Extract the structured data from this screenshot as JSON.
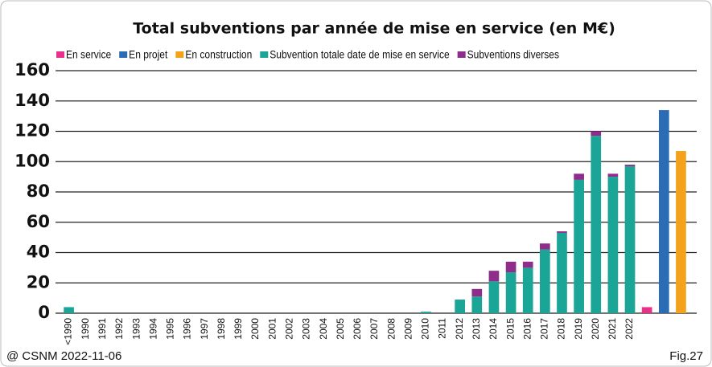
{
  "chart_data": {
    "type": "stacked_bar",
    "title": "Total subventions par année de mise en service (en M€)",
    "categories": [
      "<1990",
      "1990",
      "1991",
      "1992",
      "1993",
      "1994",
      "1995",
      "1996",
      "1997",
      "1998",
      "1999",
      "2000",
      "2001",
      "2002",
      "2003",
      "2004",
      "2005",
      "2006",
      "2007",
      "2008",
      "2009",
      "2010",
      "2011",
      "2012",
      "2013",
      "2014",
      "2015",
      "2016",
      "2017",
      "2018",
      "2019",
      "2020",
      "2021",
      "2022",
      null,
      null,
      null
    ],
    "series": [
      {
        "name": "En service",
        "color": "#e8318a",
        "values": [
          null,
          null,
          null,
          null,
          null,
          null,
          null,
          null,
          null,
          null,
          null,
          null,
          null,
          null,
          null,
          null,
          null,
          null,
          null,
          null,
          null,
          null,
          null,
          null,
          null,
          null,
          null,
          null,
          null,
          null,
          null,
          null,
          null,
          null,
          4,
          null,
          null
        ]
      },
      {
        "name": "En projet",
        "color": "#2a6db5",
        "values": [
          null,
          null,
          null,
          null,
          null,
          null,
          null,
          null,
          null,
          null,
          null,
          null,
          null,
          null,
          null,
          null,
          null,
          null,
          null,
          null,
          null,
          null,
          null,
          null,
          null,
          null,
          null,
          null,
          null,
          null,
          null,
          null,
          null,
          null,
          null,
          134,
          null
        ]
      },
      {
        "name": "En construction",
        "color": "#f5a21b",
        "values": [
          null,
          null,
          null,
          null,
          null,
          null,
          null,
          null,
          null,
          null,
          null,
          null,
          null,
          null,
          null,
          null,
          null,
          null,
          null,
          null,
          null,
          null,
          null,
          null,
          null,
          null,
          null,
          null,
          null,
          null,
          null,
          null,
          null,
          null,
          null,
          null,
          107
        ]
      },
      {
        "name": "Subvention totale date de mise en service",
        "color": "#1aa597",
        "values": [
          4,
          0,
          0,
          0,
          0,
          0,
          0,
          0,
          0,
          0,
          0,
          0,
          0,
          0,
          0,
          0,
          0,
          0,
          0,
          0,
          0,
          1,
          0,
          9,
          11,
          21,
          27,
          30,
          42,
          53,
          88,
          117,
          90,
          97,
          null,
          null,
          null
        ]
      },
      {
        "name": "Subventions diverses",
        "color": "#8e2d8a",
        "values": [
          null,
          null,
          null,
          null,
          null,
          null,
          null,
          null,
          null,
          null,
          null,
          null,
          null,
          null,
          null,
          null,
          null,
          null,
          null,
          null,
          null,
          null,
          null,
          null,
          5,
          7,
          7,
          4,
          4,
          1,
          4,
          3,
          2,
          1,
          null,
          null,
          null
        ]
      }
    ],
    "ylim": [
      0,
      160
    ],
    "yticks": [
      0,
      20,
      40,
      60,
      80,
      100,
      120,
      140,
      160
    ],
    "grid": true,
    "stack_order": [
      3,
      4,
      0,
      1,
      2
    ],
    "source": "@ CSNM 2022-11-06",
    "figure": "Fig.27"
  }
}
